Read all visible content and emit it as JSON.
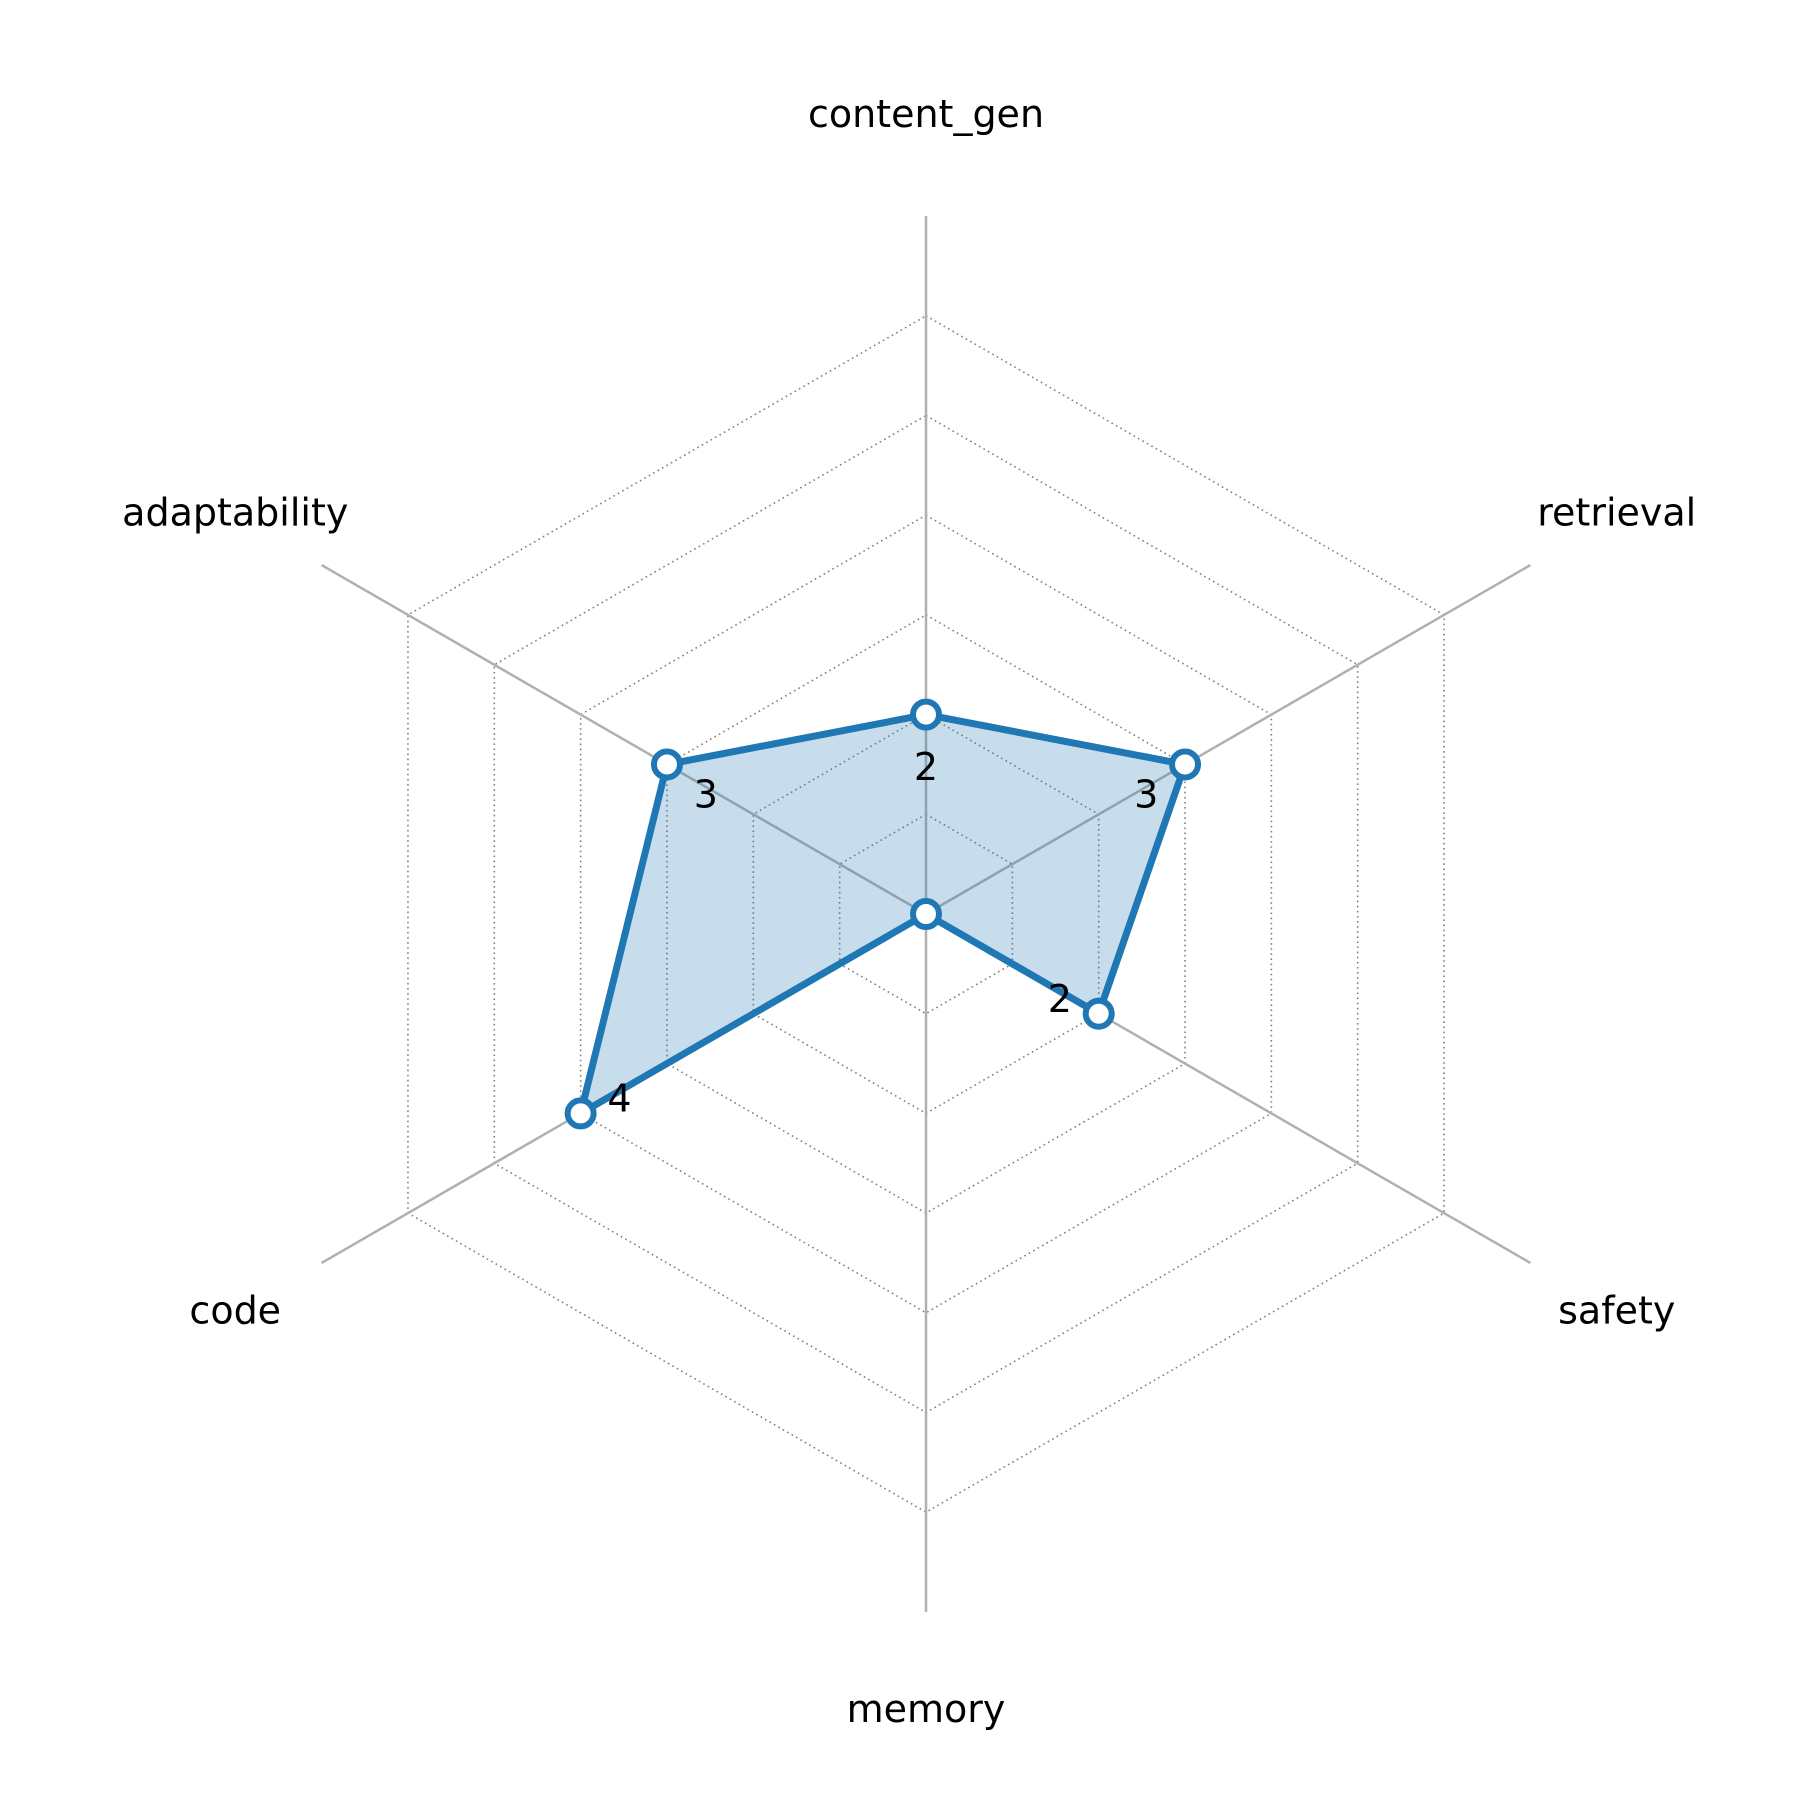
{
  "chart_data": {
    "type": "radar",
    "title": "",
    "categories": [
      "content_gen",
      "retrieval",
      "safety",
      "memory",
      "code",
      "adaptability"
    ],
    "series": [
      {
        "values": [
          2,
          3,
          2,
          0,
          4,
          3
        ],
        "color": "#1f77b4"
      }
    ],
    "data_labels": [
      "2",
      "3",
      "2",
      "",
      "4",
      "3"
    ],
    "rmax": 7,
    "grid_rings": [
      1,
      2,
      3,
      4,
      5,
      6
    ],
    "grid": true,
    "fill_color": "#1f77b4",
    "fill_opacity": 0.25,
    "axis_color": "#b0b0b0",
    "grid_color": "#808080"
  }
}
